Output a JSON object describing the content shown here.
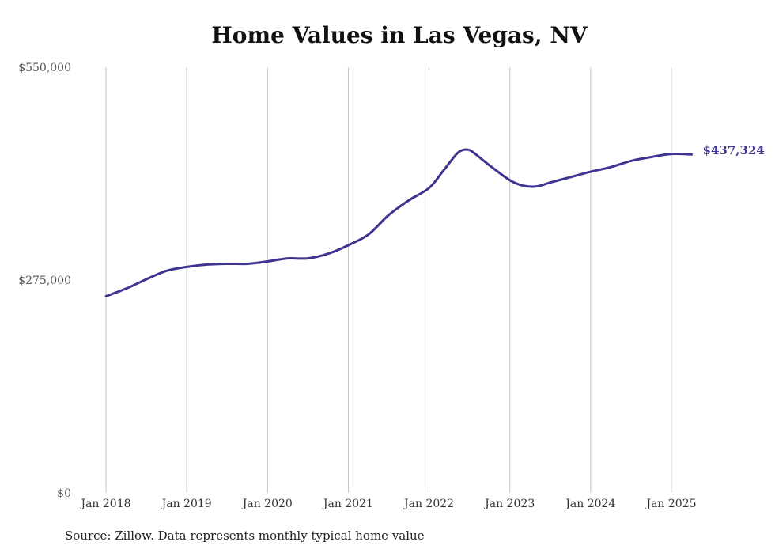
{
  "title": "Home Values in Las Vegas, NV",
  "source": "Source: Zillow. Data represents monthly typical home value",
  "line_color": "#3d3591",
  "chart_data": {
    "type": "line",
    "title": "Home Values in Las Vegas, NV",
    "xlabel": "",
    "ylabel": "",
    "ylim": [
      0,
      550000
    ],
    "xlim": [
      "2018-01",
      "2025-04"
    ],
    "yticks": [
      0,
      275000,
      550000
    ],
    "ytick_labels": [
      "$0",
      "$275,000",
      "$550,000"
    ],
    "xticks": [
      "2018-01",
      "2019-01",
      "2020-01",
      "2021-01",
      "2022-01",
      "2023-01",
      "2024-01",
      "2025-01"
    ],
    "xtick_labels": [
      "Jan 2018",
      "Jan 2019",
      "Jan 2020",
      "Jan 2021",
      "Jan 2022",
      "Jan 2023",
      "Jan 2024",
      "Jan 2025"
    ],
    "grid": "vertical",
    "end_label": "$437,324",
    "series": [
      {
        "x": [
          "2018-01",
          "2018-04",
          "2018-07",
          "2018-10",
          "2019-01",
          "2019-04",
          "2019-07",
          "2019-10",
          "2020-01",
          "2020-04",
          "2020-07",
          "2020-10",
          "2021-01",
          "2021-04",
          "2021-07",
          "2021-10",
          "2022-01",
          "2022-03",
          "2022-05",
          "2022-06",
          "2022-07",
          "2022-08",
          "2022-10",
          "2023-01",
          "2023-03",
          "2023-05",
          "2023-07",
          "2023-10",
          "2024-01",
          "2024-04",
          "2024-07",
          "2024-10",
          "2025-01",
          "2025-04"
        ],
        "y": [
          254000,
          264000,
          276000,
          287000,
          292000,
          295000,
          296000,
          296000,
          299000,
          303000,
          303000,
          309000,
          320000,
          334000,
          359000,
          378000,
          394000,
          415000,
          437000,
          443000,
          443000,
          437000,
          423000,
          404000,
          397000,
          396000,
          401000,
          408000,
          415000,
          421000,
          429000,
          434000,
          438000,
          437324
        ]
      }
    ]
  }
}
